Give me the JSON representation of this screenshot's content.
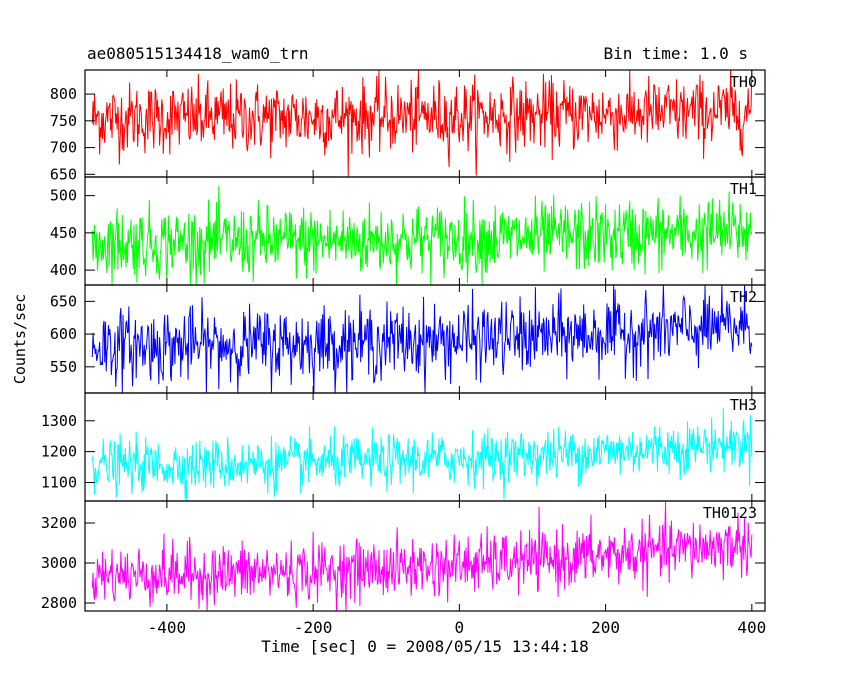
{
  "header": {
    "title": "ae080515134418_wam0_trn",
    "bin_time": "Bin time: 1.0 s"
  },
  "chart_data": {
    "type": "line",
    "ylabel": "Counts/sec",
    "xlabel": "Time [sec] 0 = 2008/05/15 13:44:18",
    "xlim": [
      -512,
      418
    ],
    "x_ticks": [
      -400,
      -200,
      0,
      200,
      400
    ],
    "bin_time_sec": 1.0,
    "series": [
      {
        "name": "TH0",
        "color": "#ff0000",
        "ylim": [
          645,
          845
        ],
        "y_ticks": [
          650,
          700,
          750,
          800
        ],
        "mean_start": 755,
        "mean_end": 768,
        "spread": 33,
        "x_range": [
          -502,
          400
        ]
      },
      {
        "name": "TH1",
        "color": "#00ff00",
        "ylim": [
          380,
          525
        ],
        "y_ticks": [
          400,
          450,
          500
        ],
        "mean_start": 437,
        "mean_end": 452,
        "spread": 24,
        "x_range": [
          -502,
          400
        ]
      },
      {
        "name": "TH2",
        "color": "#0000ff",
        "ylim": [
          510,
          675
        ],
        "y_ticks": [
          550,
          600,
          650
        ],
        "mean_start": 582,
        "mean_end": 612,
        "spread": 28,
        "x_range": [
          -502,
          400
        ]
      },
      {
        "name": "TH3",
        "color": "#00ffff",
        "ylim": [
          1040,
          1390
        ],
        "y_ticks": [
          1100,
          1200,
          1300
        ],
        "mean_start": 1155,
        "mean_end": 1230,
        "spread": 42,
        "x_range": [
          -502,
          400
        ]
      },
      {
        "name": "TH0123",
        "color": "#ff00ff",
        "ylim": [
          2760,
          3310
        ],
        "y_ticks": [
          2800,
          3000,
          3200
        ],
        "mean_start": 2940,
        "mean_end": 3100,
        "spread": 75,
        "x_range": [
          -502,
          400
        ]
      }
    ]
  }
}
